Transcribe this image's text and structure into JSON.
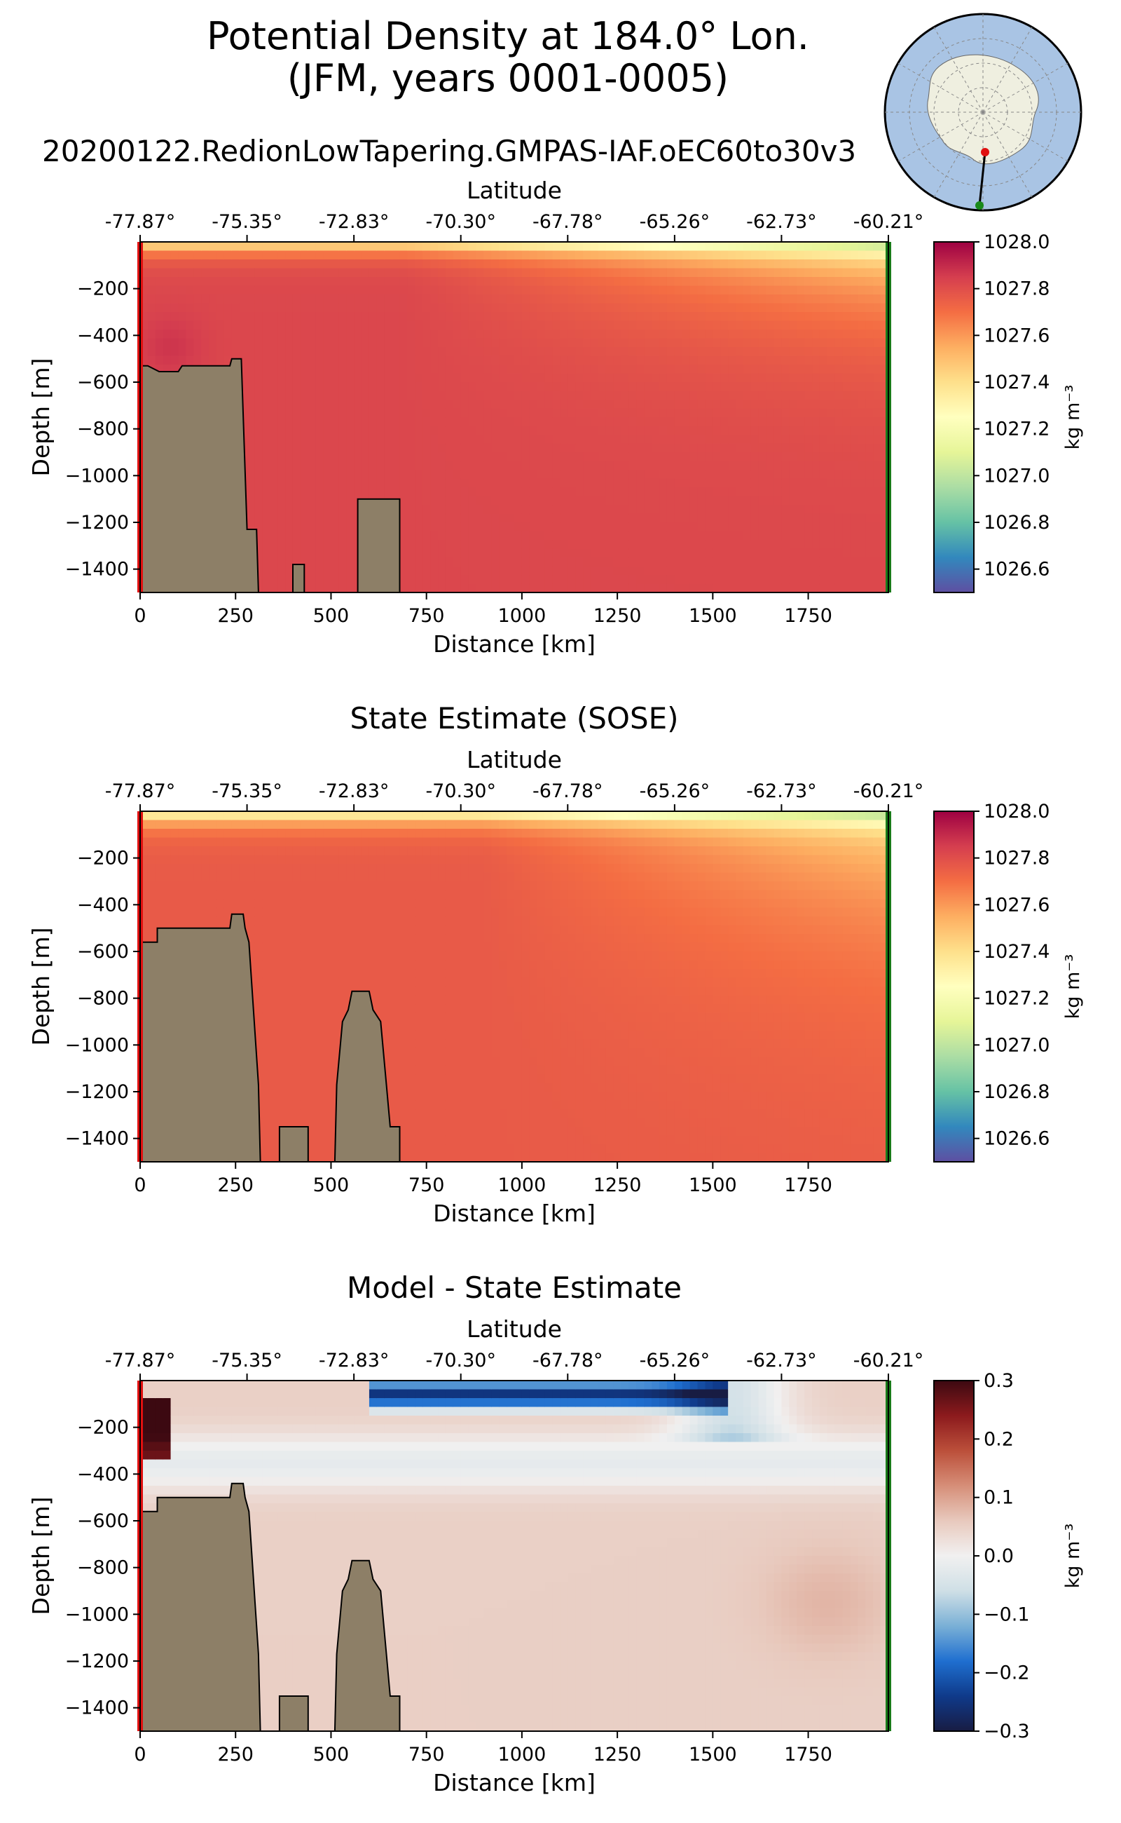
{
  "figure": {
    "title_line1": "Potential Density at 184.0° Lon.",
    "title_line2": "(JFM, years 0001-0005)",
    "run_name": "20200122.RedionLowTapering.GMPAS-IAF.oEC60to30v3"
  },
  "chart_data": [
    {
      "type": "heatmap",
      "title": "",
      "xlabel": "Distance [km]",
      "ylabel": "Depth [m]",
      "top_xlabel": "Latitude",
      "xlim": [
        0,
        1960
      ],
      "ylim": [
        -1500,
        0
      ],
      "x_ticks": [
        0,
        250,
        500,
        750,
        1000,
        1250,
        1500,
        1750
      ],
      "x_tick_labels": [
        "0",
        "250",
        "500",
        "750",
        "1000",
        "1250",
        "1500",
        "1750"
      ],
      "y_ticks": [
        -200,
        -400,
        -600,
        -800,
        -1000,
        -1200,
        -1400
      ],
      "y_tick_labels": [
        "−200",
        "−400",
        "−600",
        "−800",
        "−1000",
        "−1200",
        "−1400"
      ],
      "top_ticks": [
        0,
        280,
        560,
        840,
        1120,
        1400,
        1680,
        1960
      ],
      "top_tick_labels": [
        "-77.87°",
        "-75.35°",
        "-72.83°",
        "-70.30°",
        "-67.78°",
        "-65.26°",
        "-62.73°",
        "-60.21°"
      ],
      "colorbar": {
        "label": "kg m⁻³",
        "range": [
          1026.5,
          1028.0
        ],
        "ticks": [
          1026.6,
          1026.8,
          1027.0,
          1027.2,
          1027.4,
          1027.6,
          1027.8,
          1028.0
        ],
        "tick_labels": [
          "1026.6",
          "1026.8",
          "1027.0",
          "1027.2",
          "1027.4",
          "1027.6",
          "1027.8",
          "1028.0"
        ],
        "colormap": "Spectral_r"
      },
      "bathymetry": [
        [
          0,
          -530
        ],
        [
          20,
          -530
        ],
        [
          50,
          -555
        ],
        [
          100,
          -555
        ],
        [
          110,
          -530
        ],
        [
          235,
          -530
        ],
        [
          240,
          -500
        ],
        [
          265,
          -500
        ],
        [
          280,
          -1230
        ],
        [
          305,
          -1230
        ],
        [
          310,
          -1500
        ],
        [
          400,
          -1500
        ],
        [
          400,
          -1380
        ],
        [
          430,
          -1380
        ],
        [
          430,
          -1500
        ],
        [
          570,
          -1500
        ],
        [
          570,
          -1100
        ],
        [
          680,
          -1100
        ],
        [
          680,
          -1500
        ]
      ],
      "field_model": "model"
    },
    {
      "type": "heatmap",
      "title": "State Estimate (SOSE)",
      "xlabel": "Distance [km]",
      "ylabel": "Depth [m]",
      "top_xlabel": "Latitude",
      "xlim": [
        0,
        1960
      ],
      "ylim": [
        -1500,
        0
      ],
      "x_ticks": [
        0,
        250,
        500,
        750,
        1000,
        1250,
        1500,
        1750
      ],
      "x_tick_labels": [
        "0",
        "250",
        "500",
        "750",
        "1000",
        "1250",
        "1500",
        "1750"
      ],
      "y_ticks": [
        -200,
        -400,
        -600,
        -800,
        -1000,
        -1200,
        -1400
      ],
      "y_tick_labels": [
        "−200",
        "−400",
        "−600",
        "−800",
        "−1000",
        "−1200",
        "−1400"
      ],
      "top_ticks": [
        0,
        280,
        560,
        840,
        1120,
        1400,
        1680,
        1960
      ],
      "top_tick_labels": [
        "-77.87°",
        "-75.35°",
        "-72.83°",
        "-70.30°",
        "-67.78°",
        "-65.26°",
        "-62.73°",
        "-60.21°"
      ],
      "colorbar": {
        "label": "kg m⁻³",
        "range": [
          1026.5,
          1028.0
        ],
        "ticks": [
          1026.6,
          1026.8,
          1027.0,
          1027.2,
          1027.4,
          1027.6,
          1027.8,
          1028.0
        ],
        "tick_labels": [
          "1026.6",
          "1026.8",
          "1027.0",
          "1027.2",
          "1027.4",
          "1027.6",
          "1027.8",
          "1028.0"
        ],
        "colormap": "Spectral_r"
      },
      "bathymetry": [
        [
          0,
          -560
        ],
        [
          45,
          -560
        ],
        [
          45,
          -500
        ],
        [
          235,
          -500
        ],
        [
          240,
          -440
        ],
        [
          270,
          -440
        ],
        [
          275,
          -500
        ],
        [
          285,
          -560
        ],
        [
          310,
          -1170
        ],
        [
          315,
          -1500
        ],
        [
          365,
          -1500
        ],
        [
          365,
          -1350
        ],
        [
          440,
          -1350
        ],
        [
          440,
          -1500
        ],
        [
          510,
          -1500
        ],
        [
          515,
          -1170
        ],
        [
          530,
          -900
        ],
        [
          545,
          -850
        ],
        [
          555,
          -770
        ],
        [
          600,
          -770
        ],
        [
          610,
          -850
        ],
        [
          630,
          -900
        ],
        [
          645,
          -1170
        ],
        [
          655,
          -1350
        ],
        [
          680,
          -1350
        ],
        [
          680,
          -1500
        ]
      ],
      "field_model": "sose"
    },
    {
      "type": "heatmap",
      "title": "Model - State Estimate",
      "xlabel": "Distance [km]",
      "ylabel": "Depth [m]",
      "top_xlabel": "Latitude",
      "xlim": [
        0,
        1960
      ],
      "ylim": [
        -1500,
        0
      ],
      "x_ticks": [
        0,
        250,
        500,
        750,
        1000,
        1250,
        1500,
        1750
      ],
      "x_tick_labels": [
        "0",
        "250",
        "500",
        "750",
        "1000",
        "1250",
        "1500",
        "1750"
      ],
      "y_ticks": [
        -200,
        -400,
        -600,
        -800,
        -1000,
        -1200,
        -1400
      ],
      "y_tick_labels": [
        "−200",
        "−400",
        "−600",
        "−800",
        "−1000",
        "−1200",
        "−1400"
      ],
      "top_ticks": [
        0,
        280,
        560,
        840,
        1120,
        1400,
        1680,
        1960
      ],
      "top_tick_labels": [
        "-77.87°",
        "-75.35°",
        "-72.83°",
        "-70.30°",
        "-67.78°",
        "-65.26°",
        "-62.73°",
        "-60.21°"
      ],
      "colorbar": {
        "label": "kg m⁻³",
        "range": [
          -0.3,
          0.3
        ],
        "ticks": [
          -0.3,
          -0.2,
          -0.1,
          0.0,
          0.1,
          0.2,
          0.3
        ],
        "tick_labels": [
          "−0.3",
          "−0.2",
          "−0.1",
          "0.0",
          "0.1",
          "0.2",
          "0.3"
        ],
        "colormap": "balance"
      },
      "bathymetry": [
        [
          0,
          -560
        ],
        [
          45,
          -560
        ],
        [
          45,
          -500
        ],
        [
          235,
          -500
        ],
        [
          240,
          -440
        ],
        [
          270,
          -440
        ],
        [
          275,
          -500
        ],
        [
          285,
          -560
        ],
        [
          310,
          -1170
        ],
        [
          315,
          -1500
        ],
        [
          365,
          -1500
        ],
        [
          365,
          -1350
        ],
        [
          440,
          -1350
        ],
        [
          440,
          -1500
        ],
        [
          510,
          -1500
        ],
        [
          515,
          -1170
        ],
        [
          530,
          -900
        ],
        [
          545,
          -850
        ],
        [
          555,
          -770
        ],
        [
          600,
          -770
        ],
        [
          610,
          -850
        ],
        [
          630,
          -900
        ],
        [
          645,
          -1170
        ],
        [
          655,
          -1350
        ],
        [
          680,
          -1350
        ],
        [
          680,
          -1500
        ]
      ],
      "field_model": "diff"
    }
  ],
  "inset_map": {
    "description_colors": {
      "ocean": "#a9c4e4",
      "land": "#efefe0",
      "start_marker": "#e01010",
      "end_marker": "#1a8a1a"
    }
  },
  "colors": {
    "bathymetry_fill": "#8d7f67",
    "start_bar": "#e01010",
    "end_bar": "#1a7a1a"
  }
}
